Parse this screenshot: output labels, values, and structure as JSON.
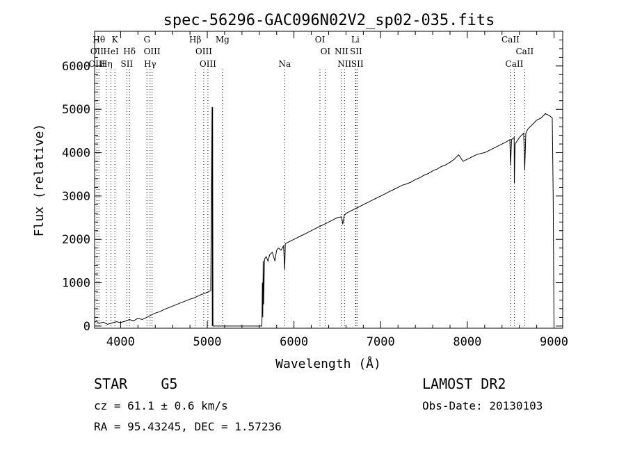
{
  "chart_data": {
    "type": "line",
    "title": "spec-56296-GAC096N02V2_sp02-035.fits",
    "xlabel": "Wavelength (Å)",
    "ylabel": "Flux (relative)",
    "xlim": [
      3700,
      9100
    ],
    "ylim": [
      -50,
      6800
    ],
    "x_ticks": [
      4000,
      5000,
      6000,
      7000,
      8000,
      9000
    ],
    "y_ticks": [
      0,
      1000,
      2000,
      3000,
      4000,
      5000,
      6000
    ],
    "x_tick_labels": [
      "4000",
      "5000",
      "6000",
      "7000",
      "8000",
      "9000"
    ],
    "y_tick_labels": [
      "0",
      "1000",
      "2000",
      "3000",
      "4000",
      "5000",
      "6000"
    ],
    "grid": false,
    "series": [
      {
        "x": [
          3700,
          3720,
          3750,
          3800,
          3850,
          3900,
          3950,
          4000,
          4050,
          4100,
          4150,
          4200,
          4250,
          4300,
          4350,
          4400,
          4450,
          4500,
          4550,
          4600,
          4650,
          4700,
          4750,
          4800,
          4850,
          4900,
          4950,
          5000,
          5040,
          5055,
          5058,
          5062,
          5066,
          5070,
          5200,
          5400,
          5600,
          5630,
          5635,
          5640,
          5645,
          5650,
          5660,
          5680,
          5700,
          5720,
          5750,
          5780,
          5800,
          5820,
          5850,
          5880,
          5893,
          5900,
          5950,
          6000,
          6050,
          6100,
          6150,
          6200,
          6250,
          6300,
          6350,
          6400,
          6450,
          6500,
          6550,
          6563,
          6580,
          6600,
          6650,
          6700,
          6750,
          6800,
          6850,
          6900,
          6950,
          7000,
          7050,
          7100,
          7150,
          7200,
          7250,
          7300,
          7350,
          7400,
          7450,
          7500,
          7550,
          7600,
          7650,
          7700,
          7750,
          7800,
          7850,
          7900,
          7950,
          8000,
          8050,
          8100,
          8150,
          8200,
          8250,
          8300,
          8350,
          8400,
          8450,
          8490,
          8498,
          8510,
          8540,
          8542,
          8550,
          8600,
          8650,
          8662,
          8675,
          8700,
          8750,
          8800,
          8850,
          8900,
          8950,
          8980,
          8990,
          9000
        ],
        "y": [
          80,
          120,
          60,
          90,
          40,
          70,
          100,
          80,
          110,
          150,
          120,
          180,
          150,
          200,
          250,
          300,
          330,
          380,
          420,
          460,
          500,
          540,
          580,
          620,
          650,
          700,
          740,
          780,
          820,
          5050,
          0,
          5050,
          0,
          0,
          0,
          0,
          0,
          0,
          1000,
          200,
          1500,
          500,
          1550,
          1600,
          1500,
          1650,
          1700,
          1500,
          1750,
          1800,
          1750,
          1850,
          1300,
          1900,
          1950,
          2000,
          2050,
          2100,
          2150,
          2200,
          2250,
          2300,
          2350,
          2400,
          2450,
          2500,
          2520,
          2350,
          2550,
          2600,
          2650,
          2700,
          2750,
          2800,
          2850,
          2900,
          2950,
          3000,
          3050,
          3100,
          3150,
          3200,
          3250,
          3280,
          3320,
          3380,
          3420,
          3480,
          3520,
          3580,
          3620,
          3680,
          3720,
          3780,
          3850,
          3950,
          3800,
          3850,
          3900,
          3950,
          3980,
          4000,
          4050,
          4100,
          4150,
          4200,
          4250,
          4300,
          3700,
          4300,
          4350,
          3300,
          4200,
          4350,
          4450,
          3600,
          4450,
          4550,
          4650,
          4750,
          4800,
          4900,
          4850,
          4800,
          3000,
          0
        ]
      }
    ],
    "lines": [
      {
        "label": "Hθ",
        "x": 3750,
        "row": 0
      },
      {
        "label": "K",
        "x": 3934,
        "row": 0
      },
      {
        "label": "G",
        "x": 4304,
        "row": 0
      },
      {
        "label": "Hβ",
        "x": 4861,
        "row": 0
      },
      {
        "label": "Mg",
        "x": 5175,
        "row": 0
      },
      {
        "label": "OI",
        "x": 6300,
        "row": 0
      },
      {
        "label": "Li",
        "x": 6708,
        "row": 0
      },
      {
        "label": "CaII",
        "x": 8498,
        "row": 0
      },
      {
        "label": "OII",
        "x": 3727,
        "row": 1
      },
      {
        "label": "HeI",
        "x": 3889,
        "row": 1
      },
      {
        "label": "Hδ",
        "x": 4102,
        "row": 1
      },
      {
        "label": "OIII",
        "x": 4363,
        "row": 1
      },
      {
        "label": "OIII",
        "x": 4959,
        "row": 1
      },
      {
        "label": "OI",
        "x": 6363,
        "row": 1
      },
      {
        "label": "NII",
        "x": 6548,
        "row": 1
      },
      {
        "label": "SII",
        "x": 6716,
        "row": 1
      },
      {
        "label": "CaII",
        "x": 8662,
        "row": 1
      },
      {
        "label": "OIII",
        "x": 3727,
        "row": 2
      },
      {
        "label": "Hη",
        "x": 3835,
        "row": 2
      },
      {
        "label": "SII",
        "x": 4072,
        "row": 2
      },
      {
        "label": "Hγ",
        "x": 4340,
        "row": 2
      },
      {
        "label": "OIII",
        "x": 5007,
        "row": 2
      },
      {
        "label": "Na",
        "x": 5893,
        "row": 2
      },
      {
        "label": "NII",
        "x": 6583,
        "row": 2
      },
      {
        "label": "SII",
        "x": 6731,
        "row": 2
      },
      {
        "label": "CaII",
        "x": 8542,
        "row": 2
      }
    ]
  },
  "info": {
    "class_label": "STAR",
    "subclass": "G5",
    "survey": "LAMOST DR2",
    "cz": "cz = 61.1 ± 0.6 km/s",
    "obs_date": "Obs-Date: 20130103",
    "radec": "RA =  95.43245, DEC =   1.57236"
  }
}
